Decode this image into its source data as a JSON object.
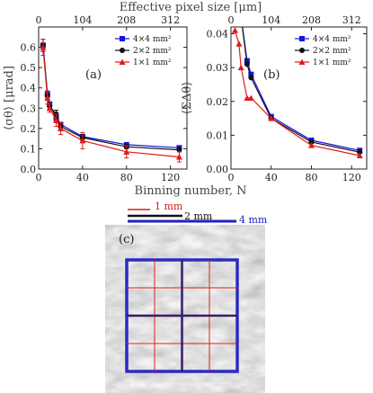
{
  "figure": {
    "top_axis_label": "Effective pixel size [μm]",
    "bottom_axis_label": "Binning number, N"
  },
  "colors": {
    "series_4x4": "#1515e0",
    "series_2x2": "#111111",
    "series_1x1": "#e01a1a",
    "grid_thin": "#e02020",
    "grid_thick": "#3a1a6a",
    "outer_square": "#2b2bc0"
  },
  "chart_data": [
    {
      "type": "line",
      "panel_label": "(a)",
      "ylabel": "⟨σθ⟩ [μrad]",
      "xlim": [
        0,
        135
      ],
      "ylim": [
        0,
        0.7
      ],
      "x_ticks": [
        0,
        40,
        80,
        120
      ],
      "y_ticks": [
        0.0,
        0.1,
        0.2,
        0.3,
        0.4,
        0.5,
        0.6
      ],
      "y_tick_labels": [
        "0.0",
        "0.1",
        "0.2",
        "0.3",
        "0.4",
        "0.5",
        "0.6"
      ],
      "top_ticks": [
        0,
        40,
        80,
        120
      ],
      "top_tick_labels": [
        "0",
        "104",
        "208",
        "312"
      ],
      "legend": [
        "4×4 mm²",
        "2×2 mm²",
        "1×1 mm²"
      ],
      "legend_position": "top-right",
      "series": [
        {
          "name": "4×4 mm²",
          "marker": "square",
          "x": [
            4,
            8,
            10,
            16,
            20,
            40,
            80,
            128
          ],
          "y": [
            0.61,
            0.37,
            0.32,
            0.25,
            0.22,
            0.16,
            0.12,
            0.105
          ],
          "err": [
            0.03,
            0.015,
            0.01,
            0.01,
            0.01,
            0.01,
            0.01,
            0.01
          ]
        },
        {
          "name": "2×2 mm²",
          "marker": "circle",
          "x": [
            4,
            8,
            10,
            16,
            20,
            40,
            80,
            128
          ],
          "y": [
            0.61,
            0.36,
            0.31,
            0.27,
            0.21,
            0.155,
            0.11,
            0.095
          ],
          "err": [
            0.03,
            0.015,
            0.01,
            0.02,
            0.02,
            0.015,
            0.01,
            0.01
          ]
        },
        {
          "name": "1×1 mm²",
          "marker": "triangle",
          "x": [
            4,
            8,
            10,
            16,
            20,
            40,
            80,
            128
          ],
          "y": [
            0.6,
            0.35,
            0.3,
            0.24,
            0.2,
            0.14,
            0.085,
            0.06
          ],
          "err": [
            0.04,
            0.03,
            0.02,
            0.03,
            0.03,
            0.04,
            0.03,
            0.025
          ]
        }
      ]
    },
    {
      "type": "line",
      "panel_label": "(b)",
      "ylabel": "⟨ΣΔθ⟩",
      "xlim": [
        0,
        135
      ],
      "ylim": [
        0,
        0.042
      ],
      "x_ticks": [
        0,
        40,
        80,
        120
      ],
      "y_ticks": [
        0.0,
        0.01,
        0.02,
        0.03,
        0.04
      ],
      "y_tick_labels": [
        "0.00",
        "0.01",
        "0.02",
        "0.03",
        "0.04"
      ],
      "top_ticks": [
        0,
        40,
        80,
        120
      ],
      "top_tick_labels": [
        "0",
        "104",
        "208",
        "312"
      ],
      "legend": [
        "4×4 mm²",
        "2×2 mm²",
        "1×1 mm²"
      ],
      "legend_position": "top-right",
      "series": [
        {
          "name": "4×4 mm²",
          "marker": "square",
          "x": [
            10,
            16,
            20,
            40,
            80,
            128
          ],
          "y": [
            0.045,
            0.032,
            0.028,
            0.0155,
            0.0085,
            0.0055
          ],
          "err": [
            0,
            0,
            0,
            0,
            0,
            0
          ]
        },
        {
          "name": "2×2 mm²",
          "marker": "circle",
          "x": [
            10,
            16,
            20,
            40,
            80,
            128
          ],
          "y": [
            0.045,
            0.031,
            0.027,
            0.015,
            0.008,
            0.005
          ],
          "err": [
            0,
            0,
            0,
            0,
            0,
            0
          ]
        },
        {
          "name": "1×1 mm²",
          "marker": "triangle",
          "x": [
            4,
            8,
            10,
            16,
            20,
            40,
            80,
            128
          ],
          "y": [
            0.041,
            0.037,
            0.03,
            0.021,
            0.021,
            0.015,
            0.007,
            0.004
          ],
          "err": [
            0,
            0,
            0,
            0,
            0,
            0,
            0,
            0
          ]
        }
      ]
    }
  ],
  "image_panel": {
    "label": "(c)",
    "scale_bars": [
      {
        "text": "1 mm",
        "color": "#d02020",
        "length_mm": 1
      },
      {
        "text": "2 mm",
        "color": "#111111",
        "length_mm": 2
      },
      {
        "text": "4 mm",
        "color": "#2020c0",
        "length_mm": 4
      }
    ]
  }
}
